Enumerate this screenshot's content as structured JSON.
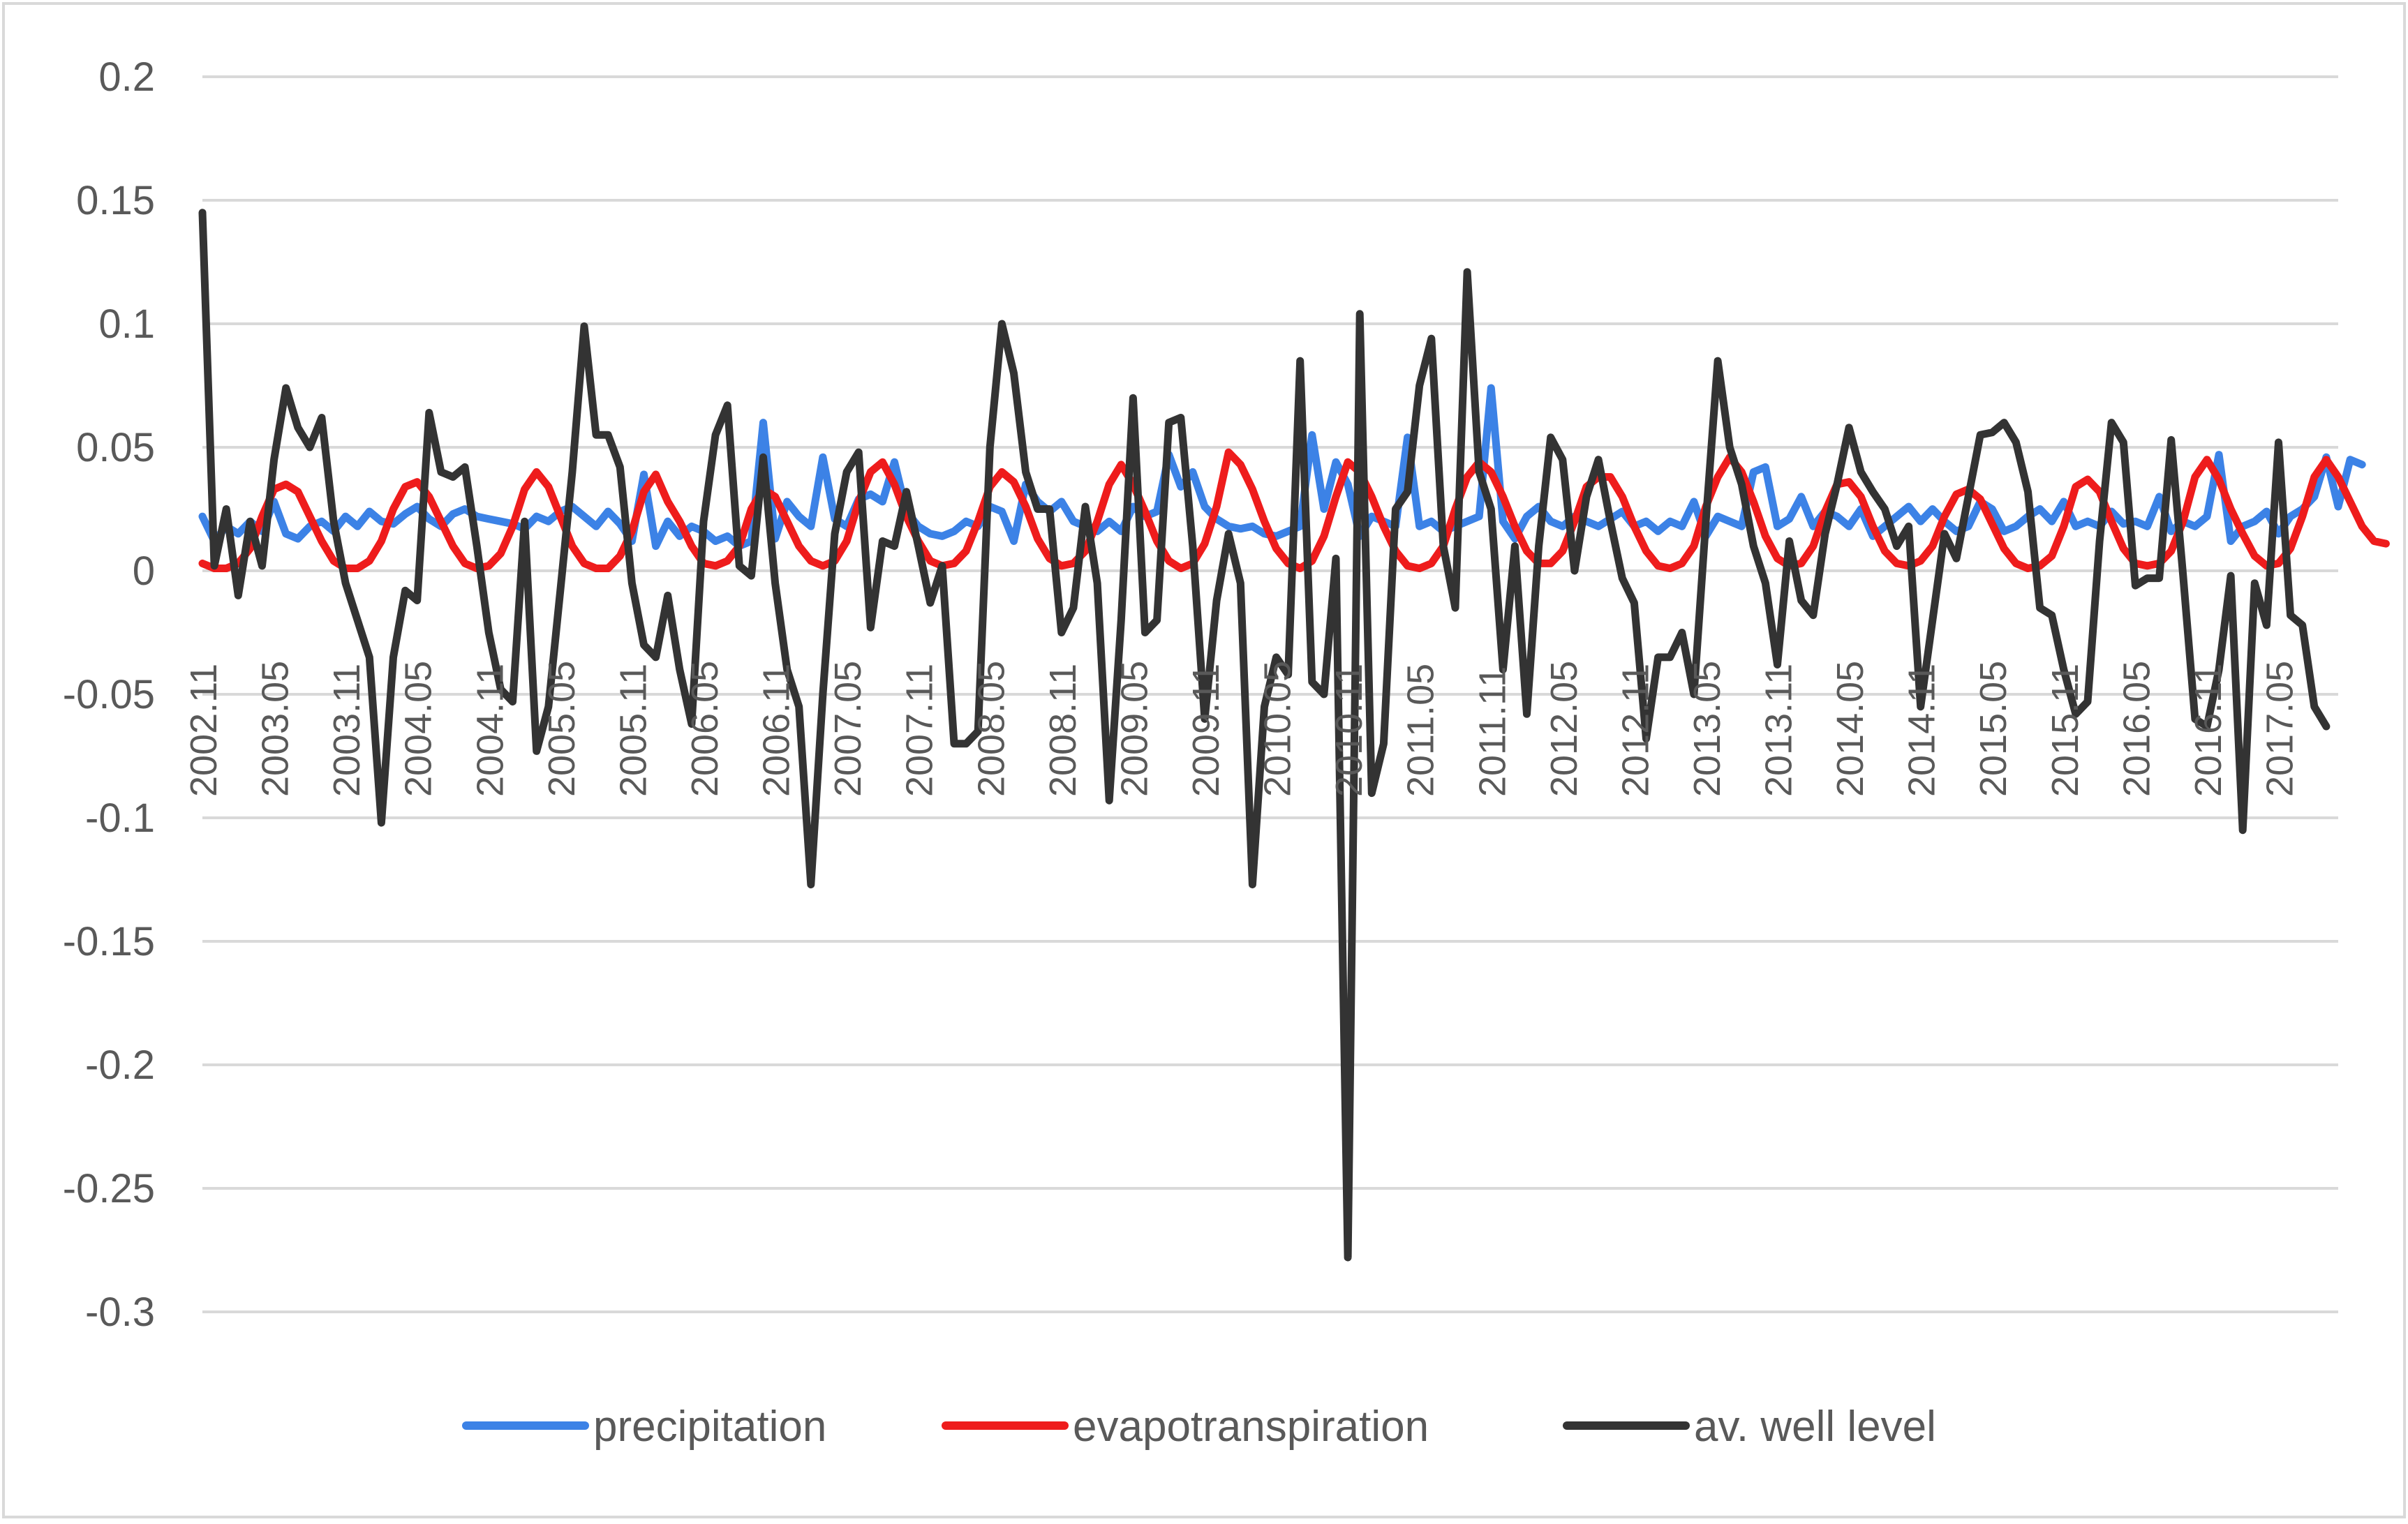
{
  "chart_data": {
    "type": "line",
    "title": "",
    "xlabel": "",
    "ylabel": "",
    "ylim": [
      -0.3,
      0.2
    ],
    "yticks": [
      0.2,
      0.15,
      0.1,
      0.05,
      0,
      -0.05,
      -0.1,
      -0.15,
      -0.2,
      -0.25,
      -0.3
    ],
    "ytick_labels": [
      "0.2",
      "0.15",
      "0.1",
      "0.05",
      "0",
      "-0.05",
      "-0.1",
      "-0.15",
      "-0.2",
      "-0.25",
      "-0.3"
    ],
    "x_start": "2002.11",
    "n_points": 180,
    "x_tick_labels": [
      "2002.11",
      "2003.05",
      "2003.11",
      "2004.05",
      "2004.11",
      "2005.05",
      "2005.11",
      "2006.05",
      "2006.11",
      "2007.05",
      "2007.11",
      "2008.05",
      "2008.11",
      "2009.05",
      "2009.11",
      "2010.05",
      "2010.11",
      "2011.05",
      "2011.11",
      "2012.05",
      "2012.11",
      "2013.05",
      "2013.11",
      "2014.05",
      "2014.11",
      "2015.05",
      "2015.11",
      "2016.05",
      "2016.11",
      "2017.05"
    ],
    "grid": true,
    "legend_position": "bottom",
    "series": [
      {
        "name": "precipitation",
        "color": "#3c82e6",
        "values": [
          0.022,
          0.012,
          0.018,
          0.015,
          0.02,
          0.016,
          0.028,
          0.015,
          0.013,
          0.018,
          0.02,
          0.016,
          0.022,
          0.018,
          0.024,
          0.02,
          0.019,
          0.023,
          0.026,
          0.021,
          0.018,
          0.023,
          0.025,
          0.022,
          0.021,
          0.02,
          0.019,
          0.017,
          0.022,
          0.02,
          0.024,
          0.026,
          0.022,
          0.018,
          0.024,
          0.019,
          0.012,
          0.039,
          0.01,
          0.02,
          0.014,
          0.018,
          0.016,
          0.012,
          0.014,
          0.01,
          0.012,
          0.06,
          0.013,
          0.028,
          0.022,
          0.018,
          0.046,
          0.021,
          0.018,
          0.029,
          0.031,
          0.028,
          0.044,
          0.024,
          0.018,
          0.015,
          0.014,
          0.016,
          0.02,
          0.018,
          0.026,
          0.024,
          0.012,
          0.035,
          0.028,
          0.024,
          0.028,
          0.02,
          0.018,
          0.016,
          0.02,
          0.016,
          0.026,
          0.022,
          0.024,
          0.047,
          0.034,
          0.04,
          0.026,
          0.021,
          0.018,
          0.017,
          0.018,
          0.015,
          0.014,
          0.016,
          0.018,
          0.055,
          0.025,
          0.044,
          0.035,
          0.014,
          0.022,
          0.02,
          0.018,
          0.054,
          0.018,
          0.02,
          0.016,
          0.018,
          0.02,
          0.022,
          0.074,
          0.02,
          0.013,
          0.022,
          0.026,
          0.02,
          0.018,
          0.022,
          0.02,
          0.018,
          0.021,
          0.024,
          0.018,
          0.02,
          0.016,
          0.02,
          0.018,
          0.028,
          0.014,
          0.022,
          0.02,
          0.018,
          0.04,
          0.042,
          0.018,
          0.021,
          0.03,
          0.018,
          0.024,
          0.022,
          0.018,
          0.025,
          0.014,
          0.018,
          0.022,
          0.026,
          0.02,
          0.025,
          0.02,
          0.016,
          0.018,
          0.028,
          0.025,
          0.016,
          0.018,
          0.022,
          0.025,
          0.02,
          0.028,
          0.018,
          0.02,
          0.018,
          0.024,
          0.019,
          0.02,
          0.018,
          0.03,
          0.016,
          0.02,
          0.018,
          0.022,
          0.047,
          0.012,
          0.018,
          0.02,
          0.024,
          0.015,
          0.022,
          0.025,
          0.03,
          0.046,
          0.026,
          0.045,
          0.043
        ]
      },
      {
        "name": "evapotranspiration",
        "color": "#ee1c1c",
        "values": [
          0.003,
          0.001,
          0.001,
          0.003,
          0.009,
          0.022,
          0.033,
          0.035,
          0.032,
          0.022,
          0.012,
          0.004,
          0.001,
          0.001,
          0.004,
          0.012,
          0.025,
          0.034,
          0.036,
          0.03,
          0.02,
          0.01,
          0.003,
          0.001,
          0.002,
          0.007,
          0.018,
          0.033,
          0.04,
          0.034,
          0.022,
          0.01,
          0.003,
          0.001,
          0.001,
          0.006,
          0.016,
          0.032,
          0.039,
          0.028,
          0.02,
          0.01,
          0.003,
          0.002,
          0.004,
          0.01,
          0.025,
          0.033,
          0.03,
          0.02,
          0.01,
          0.004,
          0.002,
          0.004,
          0.012,
          0.028,
          0.04,
          0.044,
          0.035,
          0.022,
          0.012,
          0.004,
          0.002,
          0.003,
          0.008,
          0.02,
          0.034,
          0.04,
          0.036,
          0.026,
          0.013,
          0.005,
          0.002,
          0.003,
          0.008,
          0.02,
          0.035,
          0.043,
          0.035,
          0.024,
          0.012,
          0.004,
          0.001,
          0.003,
          0.011,
          0.026,
          0.048,
          0.043,
          0.033,
          0.02,
          0.009,
          0.003,
          0.001,
          0.004,
          0.014,
          0.03,
          0.044,
          0.04,
          0.03,
          0.018,
          0.008,
          0.002,
          0.001,
          0.003,
          0.01,
          0.025,
          0.038,
          0.044,
          0.04,
          0.03,
          0.018,
          0.008,
          0.003,
          0.003,
          0.008,
          0.02,
          0.034,
          0.038,
          0.038,
          0.03,
          0.018,
          0.008,
          0.002,
          0.001,
          0.003,
          0.01,
          0.026,
          0.038,
          0.046,
          0.04,
          0.028,
          0.014,
          0.005,
          0.002,
          0.003,
          0.01,
          0.024,
          0.035,
          0.036,
          0.03,
          0.018,
          0.008,
          0.003,
          0.002,
          0.004,
          0.01,
          0.022,
          0.031,
          0.033,
          0.029,
          0.019,
          0.009,
          0.003,
          0.001,
          0.002,
          0.006,
          0.018,
          0.034,
          0.037,
          0.032,
          0.02,
          0.009,
          0.003,
          0.002,
          0.003,
          0.008,
          0.02,
          0.038,
          0.045,
          0.037,
          0.025,
          0.015,
          0.006,
          0.002,
          0.003,
          0.009,
          0.022,
          0.038,
          0.045,
          0.038,
          0.028,
          0.018,
          0.012,
          0.011
        ]
      },
      {
        "name": "av. well level",
        "color": "#333333",
        "values": [
          0.145,
          0.002,
          0.025,
          -0.01,
          0.02,
          0.002,
          0.045,
          0.074,
          0.058,
          0.05,
          0.062,
          0.02,
          -0.005,
          -0.02,
          -0.035,
          -0.102,
          -0.035,
          -0.008,
          -0.012,
          0.064,
          0.04,
          0.038,
          0.042,
          0.01,
          -0.025,
          -0.048,
          -0.053,
          0.02,
          -0.073,
          -0.055,
          -0.008,
          0.04,
          0.099,
          0.055,
          0.055,
          0.042,
          -0.005,
          -0.03,
          -0.035,
          -0.01,
          -0.04,
          -0.062,
          0.02,
          0.055,
          0.067,
          0.002,
          -0.002,
          0.046,
          -0.005,
          -0.04,
          -0.055,
          -0.127,
          -0.05,
          0.015,
          0.04,
          0.048,
          -0.023,
          0.012,
          0.01,
          0.032,
          0.01,
          -0.013,
          0.002,
          -0.07,
          -0.07,
          -0.065,
          0.05,
          0.1,
          0.08,
          0.04,
          0.025,
          0.025,
          -0.025,
          -0.015,
          0.026,
          -0.005,
          -0.093,
          -0.02,
          0.07,
          -0.025,
          -0.02,
          0.06,
          0.062,
          0.01,
          -0.06,
          -0.012,
          0.015,
          -0.005,
          -0.127,
          -0.055,
          -0.035,
          -0.042,
          0.085,
          -0.045,
          -0.05,
          0.005,
          -0.278,
          0.104,
          -0.09,
          -0.07,
          0.025,
          0.032,
          0.075,
          0.094,
          0.01,
          -0.015,
          0.121,
          0.04,
          0.025,
          -0.04,
          0.01,
          -0.058,
          0.01,
          0.054,
          0.045,
          0.0,
          0.03,
          0.045,
          0.02,
          -0.003,
          -0.013,
          -0.068,
          -0.035,
          -0.035,
          -0.025,
          -0.05,
          0.02,
          0.085,
          0.05,
          0.035,
          0.01,
          -0.005,
          -0.038,
          0.012,
          -0.012,
          -0.018,
          0.015,
          0.035,
          0.058,
          0.04,
          0.032,
          0.025,
          0.01,
          0.018,
          -0.055,
          -0.02,
          0.015,
          0.005,
          0.03,
          0.055,
          0.056,
          0.06,
          0.052,
          0.032,
          -0.015,
          -0.018,
          -0.04,
          -0.058,
          -0.053,
          0.012,
          0.06,
          0.052,
          -0.006,
          -0.003,
          -0.003,
          0.053,
          -0.002,
          -0.06,
          -0.063,
          -0.04,
          -0.002,
          -0.105,
          -0.005,
          -0.022,
          0.052,
          -0.018,
          -0.022,
          -0.055,
          -0.063
        ]
      }
    ]
  }
}
